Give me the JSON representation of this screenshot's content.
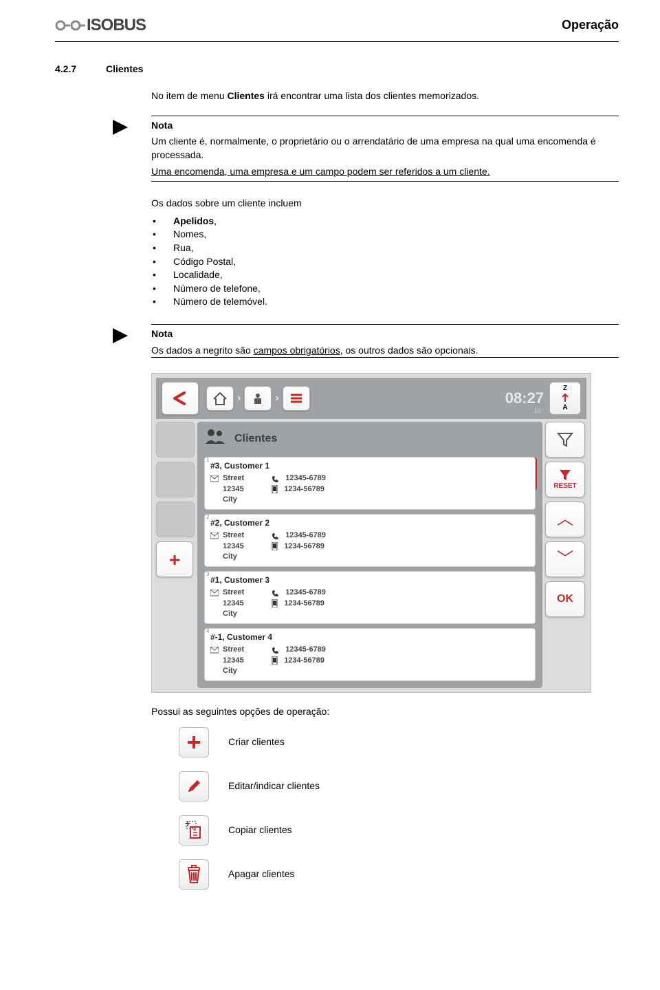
{
  "logo_text": "ISOBUS",
  "page_category": "Operação",
  "section": {
    "number": "4.2.7",
    "title": "Clientes"
  },
  "intro": {
    "prefix": "No item de menu ",
    "bold": "Clientes",
    "suffix": " irá encontrar uma lista dos clientes memorizados."
  },
  "nota1": {
    "title": "Nota",
    "line1": "Um cliente é, normalmente, o proprietário ou o arrendatário de uma empresa na qual uma encomenda é processada.",
    "line2_underlined": "Uma encomenda, uma empresa e um campo podem ser referidos a um cliente."
  },
  "data_block": {
    "lead": "Os dados sobre um cliente incluem",
    "items": [
      "Apelidos,",
      "Nomes,",
      "Rua,",
      "Código Postal,",
      "Localidade,",
      "Número de telefone,",
      "Número de telemóvel."
    ],
    "bold_index": 0
  },
  "nota2": {
    "title": "Nota",
    "line_prefix": "Os dados a negrito são ",
    "line_underlined": "campos obrigatórios",
    "line_suffix": ", os outros dados são opcionais."
  },
  "device": {
    "clock": "08:27",
    "clock_sub": "10.",
    "sort_top": "Z",
    "sort_bottom": "A",
    "header_label": "Clientes",
    "reset_label": "RESET",
    "ok_label": "OK",
    "clients": [
      {
        "n": "1",
        "title": "#3, Customer 1",
        "street": "Street",
        "zip": "12345",
        "city": "City",
        "phone": "12345-6789",
        "mobile": "1234-56789"
      },
      {
        "n": "2",
        "title": "#2, Customer 2",
        "street": "Street",
        "zip": "12345",
        "city": "City",
        "phone": "12345-6789",
        "mobile": "1234-56789"
      },
      {
        "n": "3",
        "title": "#1, Customer 3",
        "street": "Street",
        "zip": "12345",
        "city": "City",
        "phone": "12345-6789",
        "mobile": "1234-56789"
      },
      {
        "n": "4",
        "title": "#-1, Customer 4",
        "street": "Street",
        "zip": "12345",
        "city": "City",
        "phone": "12345-6789",
        "mobile": "1234-56789"
      }
    ]
  },
  "ops_intro": "Possui as seguintes opções de operação:",
  "ops": [
    {
      "icon": "plus",
      "label": "Criar clientes"
    },
    {
      "icon": "pencil",
      "label": "Editar/indicar clientes"
    },
    {
      "icon": "copy",
      "label": "Copiar clientes"
    },
    {
      "icon": "trash",
      "label": "Apagar clientes"
    }
  ],
  "colors": {
    "accent": "#c62828",
    "panel": "#9fa3a6",
    "slot": "#c8c8c8"
  }
}
